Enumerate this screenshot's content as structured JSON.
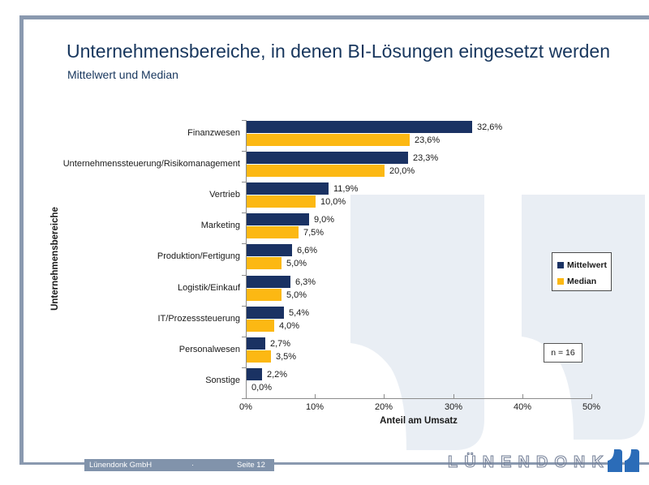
{
  "slide": {
    "title": "Unternehmensbereiche, in denen BI-Lösungen eingesetzt werden",
    "subtitle": "Mittelwert und Median"
  },
  "chart_data": {
    "type": "bar",
    "orientation": "horizontal",
    "title": "Unternehmensbereiche, in denen BI-Lösungen eingesetzt werden",
    "subtitle": "Mittelwert und Median",
    "xlabel": "Anteil am Umsatz",
    "ylabel": "Unternehmensbereiche",
    "xlim": [
      0,
      50
    ],
    "xticks": [
      "0%",
      "10%",
      "20%",
      "30%",
      "40%",
      "50%"
    ],
    "grid": false,
    "legend_position": "right-inside",
    "categories": [
      "Finanzwesen",
      "Unternehmenssteuerung/Risikomanagement",
      "Vertrieb",
      "Marketing",
      "Produktion/Fertigung",
      "Logistik/Einkauf",
      "IT/Prozesssteuerung",
      "Personalwesen",
      "Sonstige"
    ],
    "series": [
      {
        "name": "Mittelwert",
        "color": "#1A3263",
        "values": [
          32.6,
          23.3,
          11.9,
          9.0,
          6.6,
          6.3,
          5.4,
          2.7,
          2.2
        ],
        "labels": [
          "32,6%",
          "23,3%",
          "11,9%",
          "9,0%",
          "6,6%",
          "6,3%",
          "5,4%",
          "2,7%",
          "2,2%"
        ]
      },
      {
        "name": "Median",
        "color": "#FCB813",
        "values": [
          23.6,
          20.0,
          10.0,
          7.5,
          5.0,
          5.0,
          4.0,
          3.5,
          0.0
        ],
        "labels": [
          "23,6%",
          "20,0%",
          "10,0%",
          "7,5%",
          "5,0%",
          "5,0%",
          "4,0%",
          "3,5%",
          "0,0%"
        ]
      }
    ],
    "annotation": "n = 16"
  },
  "footer": {
    "company": "Lünendonk GmbH",
    "separator": "·",
    "page": "Seite 12",
    "logo_text": "LÜNENDONK"
  },
  "colors": {
    "navy": "#1A3263",
    "yellow": "#FCB813",
    "title-text": "#17365D",
    "frame": "#8A99AF",
    "footer-bar": "#8193AB",
    "watermark": "#E9EEF4",
    "logo-blue": "#2B6CB8",
    "axis-gray": "#8C8C8C",
    "label-text": "#1A1A1A"
  }
}
